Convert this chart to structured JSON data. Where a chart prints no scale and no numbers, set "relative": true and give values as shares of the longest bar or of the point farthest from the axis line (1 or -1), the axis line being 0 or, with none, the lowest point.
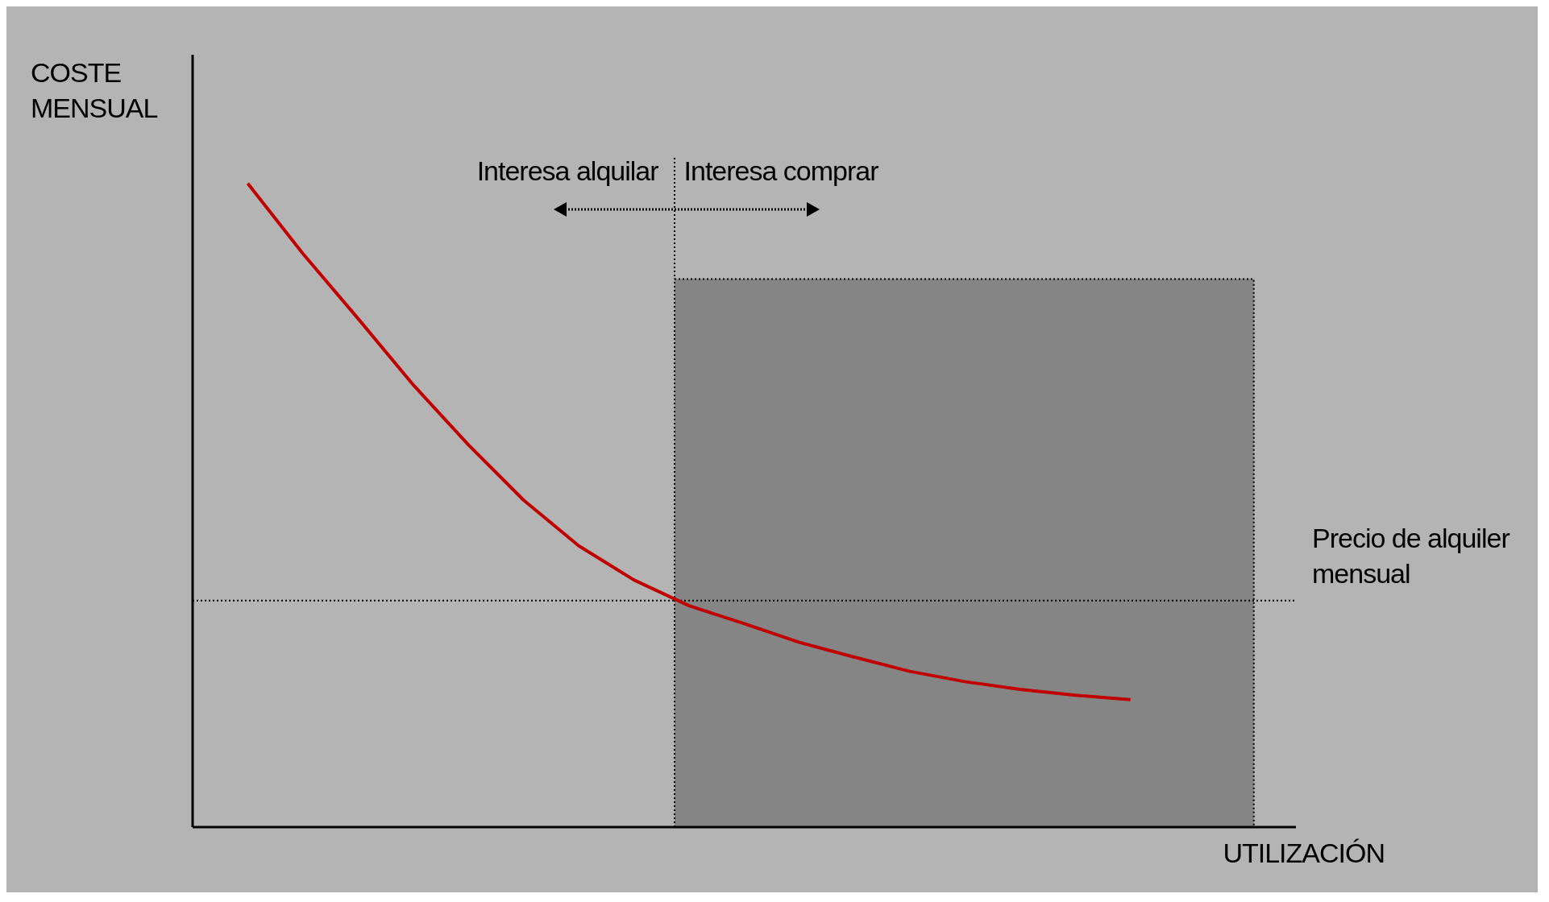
{
  "chart_data": {
    "type": "line",
    "relative": true,
    "xlabel": "UTILIZACIÓN",
    "ylabel": "COSTE MENSUAL",
    "categories": [
      null,
      null,
      null,
      null,
      null,
      null,
      null,
      null,
      null,
      null,
      null,
      null,
      null,
      null,
      null,
      null,
      null,
      null,
      null,
      null,
      null
    ],
    "series": [
      {
        "color": "#c00000",
        "values": [
          null,
          1,
          0.891,
          0.79,
          0.687,
          0.594,
          0.508,
          0.437,
          0.384,
          0.344,
          0.316,
          0.287,
          0.264,
          0.242,
          0.226,
          0.214,
          0.205,
          0.198,
          null,
          null,
          null
        ]
      }
    ],
    "ref_lines": [
      {
        "axis": "y",
        "value": 0.352,
        "label": "Precio de alquiler mensual",
        "line_style": "dotted",
        "color": "#000000"
      }
    ],
    "annotations": [
      "Interesa alquilar",
      "Interesa comprar"
    ],
    "marker": "none",
    "line_style": "solid"
  }
}
